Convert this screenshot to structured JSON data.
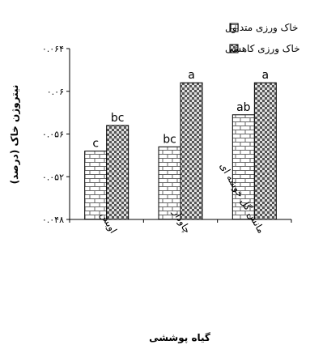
{
  "chart_data": {
    "type": "bar",
    "categories": [
      "اویش",
      "چاودار",
      "مانش گل خوشه ای"
    ],
    "series": [
      {
        "name": "خاک ورزی متداول",
        "values": [
          0.0544,
          0.0548,
          0.0578
        ],
        "labels": [
          "c",
          "bc",
          "ab"
        ],
        "pattern": "brick"
      },
      {
        "name": "خاک ورزی کاهشی",
        "values": [
          0.0568,
          0.0608,
          0.0608
        ],
        "labels": [
          "bc",
          "a",
          "a"
        ],
        "pattern": "checker"
      }
    ],
    "ylim": [
      0.048,
      0.064
    ],
    "yticks": [
      "۰.۰۴۸",
      "۰.۰۵۲",
      "۰.۰۵۶",
      "۰.۰۶",
      "۰.۰۶۴"
    ],
    "ylabel": "نیتروژن خاک (درصد)",
    "xlabel": "گیاه پوششی",
    "legend_position": "top"
  }
}
